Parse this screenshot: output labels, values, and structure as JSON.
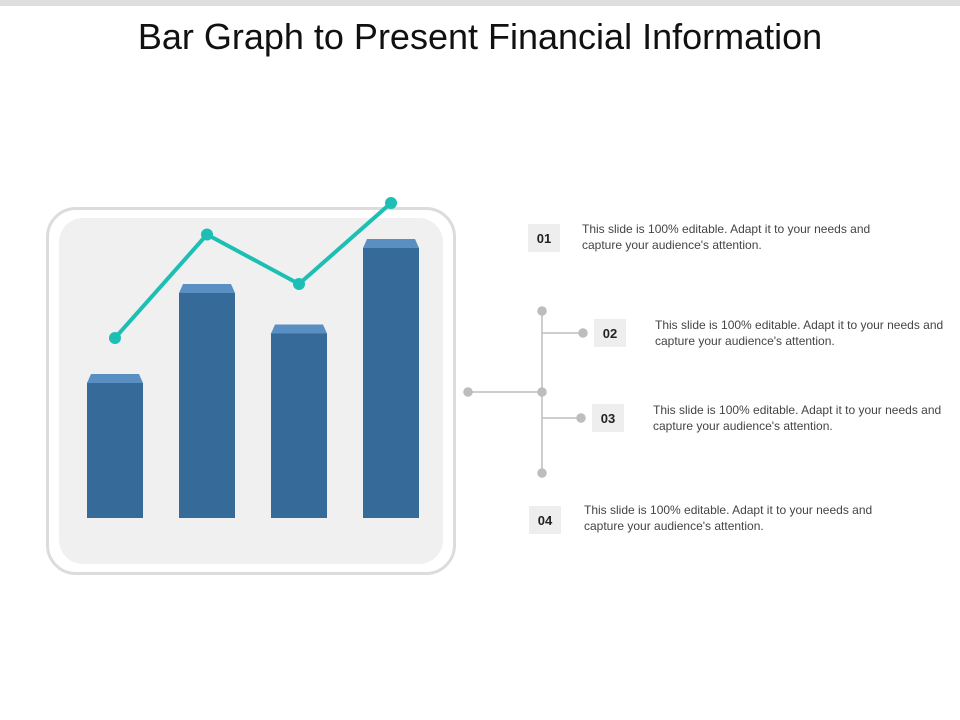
{
  "header": {
    "title": "Bar Graph to Present Financial Information"
  },
  "colors": {
    "bar": "#356a99",
    "bar_top": "#5a8fc4",
    "line": "#1dbfb5",
    "connector": "#bdbdbd"
  },
  "chart_data": {
    "type": "bar",
    "categories": [
      "",
      "",
      "",
      ""
    ],
    "values": [
      3.2,
      5.2,
      4.3,
      6.2
    ],
    "line_values": [
      4.0,
      6.3,
      5.2,
      7.0
    ],
    "ylim": [
      0,
      8
    ],
    "title": "",
    "xlabel": "",
    "ylabel": "",
    "grid": false,
    "legend": "none"
  },
  "items": [
    {
      "number": "01",
      "text": "This slide is 100% editable. Adapt it to your needs and capture your audience's attention."
    },
    {
      "number": "02",
      "text": "This slide is 100% editable. Adapt it to your needs and capture your audience's attention."
    },
    {
      "number": "03",
      "text": "This slide is 100% editable. Adapt it to your needs and capture your audience's attention."
    },
    {
      "number": "04",
      "text": "This slide is 100% editable. Adapt it to your needs and capture your audience's attention."
    }
  ]
}
